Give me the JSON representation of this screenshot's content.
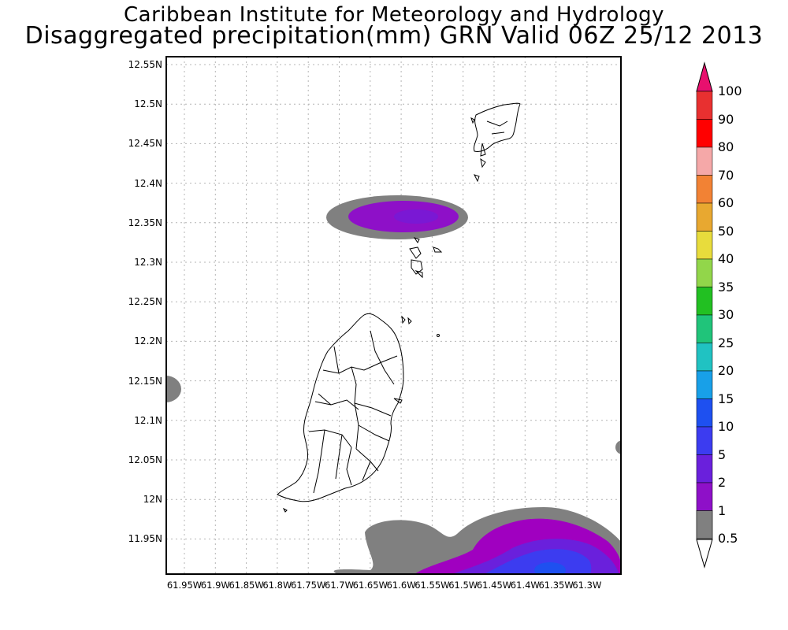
{
  "header": {
    "title": "Caribbean Institute for Meteorology and Hydrology",
    "subtitle": "Disaggregated precipitation(mm) GRN Valid 06Z 25/12 2013"
  },
  "map": {
    "lat_ticks": [
      "12.55N",
      "12.5N",
      "12.45N",
      "12.4N",
      "12.35N",
      "12.3N",
      "12.25N",
      "12.2N",
      "12.15N",
      "12.1N",
      "12.05N",
      "12N",
      "11.95N"
    ],
    "lon_ticks": [
      "61.95W",
      "61.9W",
      "61.85W",
      "61.8W",
      "61.75W",
      "61.7W",
      "61.65W",
      "61.6W",
      "61.55W",
      "61.5W",
      "61.45W",
      "61.4W",
      "61.35W",
      "61.3W"
    ]
  },
  "legend": {
    "levels": [
      "100",
      "90",
      "80",
      "70",
      "60",
      "50",
      "40",
      "35",
      "30",
      "25",
      "20",
      "15",
      "10",
      "5",
      "2",
      "1",
      "0.5"
    ],
    "colors": {
      "above_100": "#e8106e",
      "90-100": "#e83030",
      "80-90": "#ff0000",
      "70-80": "#f5a8a8",
      "60-70": "#f28234",
      "50-60": "#e8a830",
      "40-50": "#e8dc3c",
      "35-40": "#92d64a",
      "30-35": "#22c022",
      "25-30": "#20c47a",
      "20-25": "#20c2c2",
      "15-20": "#18a0e8",
      "10-15": "#1e50f0",
      "5-10": "#3c3cf0",
      "2-5": "#6a20dc",
      "1-2": "#8e10c8",
      "0.5-1": "#a000c0",
      "below_0.5": "#808080"
    }
  }
}
